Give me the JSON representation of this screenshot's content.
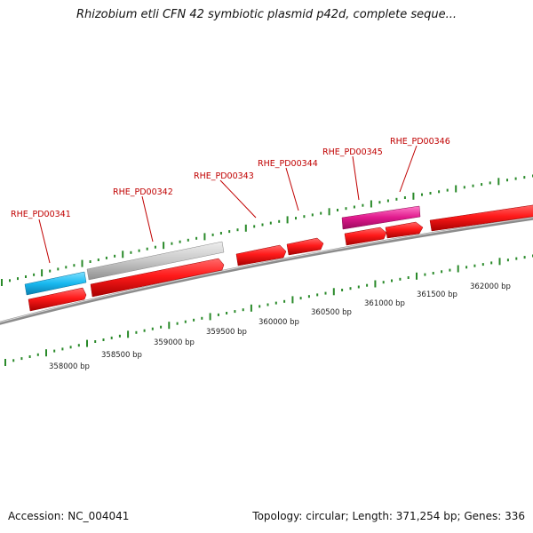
{
  "title": "Rhizobium etli CFN 42 symbiotic plasmid p42d, complete seque...",
  "footer": {
    "accession": "Accession: NC_004041",
    "summary": "Topology: circular; Length: 371,254 bp; Genes: 336"
  },
  "gene_labels": [
    "RHE_PD00341",
    "RHE_PD00342",
    "RHE_PD00343",
    "RHE_PD00344",
    "RHE_PD00345",
    "RHE_PD00346"
  ],
  "scale_labels": [
    "358000 bp",
    "358500 bp",
    "359000 bp",
    "359500 bp",
    "360000 bp",
    "360500 bp",
    "361000 bp",
    "361500 bp",
    "362000 bp"
  ],
  "colors": {
    "gene": "#ff1a1a",
    "cds_cyan": "#19b9f0",
    "cds_gray": "#c8c8c8",
    "cds_magenta": "#e0198c",
    "backbone": "#8c8c8c",
    "ticks": "#2a8a2a",
    "label": "#c00000"
  }
}
